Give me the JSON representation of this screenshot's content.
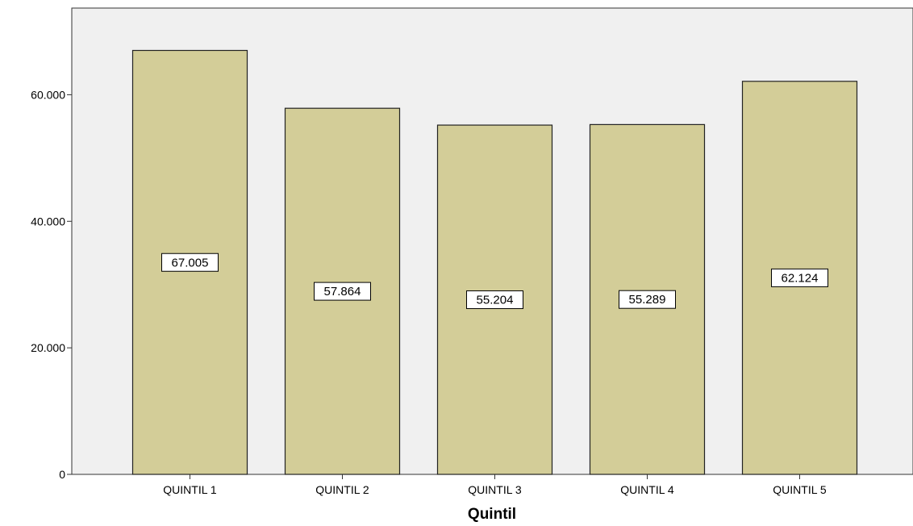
{
  "chart_data": {
    "type": "bar",
    "title": "",
    "xlabel": "Quintil",
    "ylabel": "",
    "categories": [
      "QUINTIL 1",
      "QUINTIL 2",
      "QUINTIL 3",
      "QUINTIL 4",
      "QUINTIL 5"
    ],
    "values": [
      67.005,
      57.864,
      55.204,
      55.289,
      62.124
    ],
    "data_labels": [
      "67.005",
      "57.864",
      "55.204",
      "55.289",
      "62.124"
    ],
    "ylim": [
      0,
      73.7
    ],
    "yticks": [
      0,
      20,
      40,
      60
    ],
    "ytick_labels": [
      "0",
      "20.000",
      "40.000",
      "60.000"
    ],
    "grid": false,
    "legend": "none",
    "colors": {
      "bar_fill": "#d3cd98",
      "bar_stroke": "#222222",
      "plot_background": "#f0f0f0",
      "label_box": "#ffffff"
    }
  }
}
